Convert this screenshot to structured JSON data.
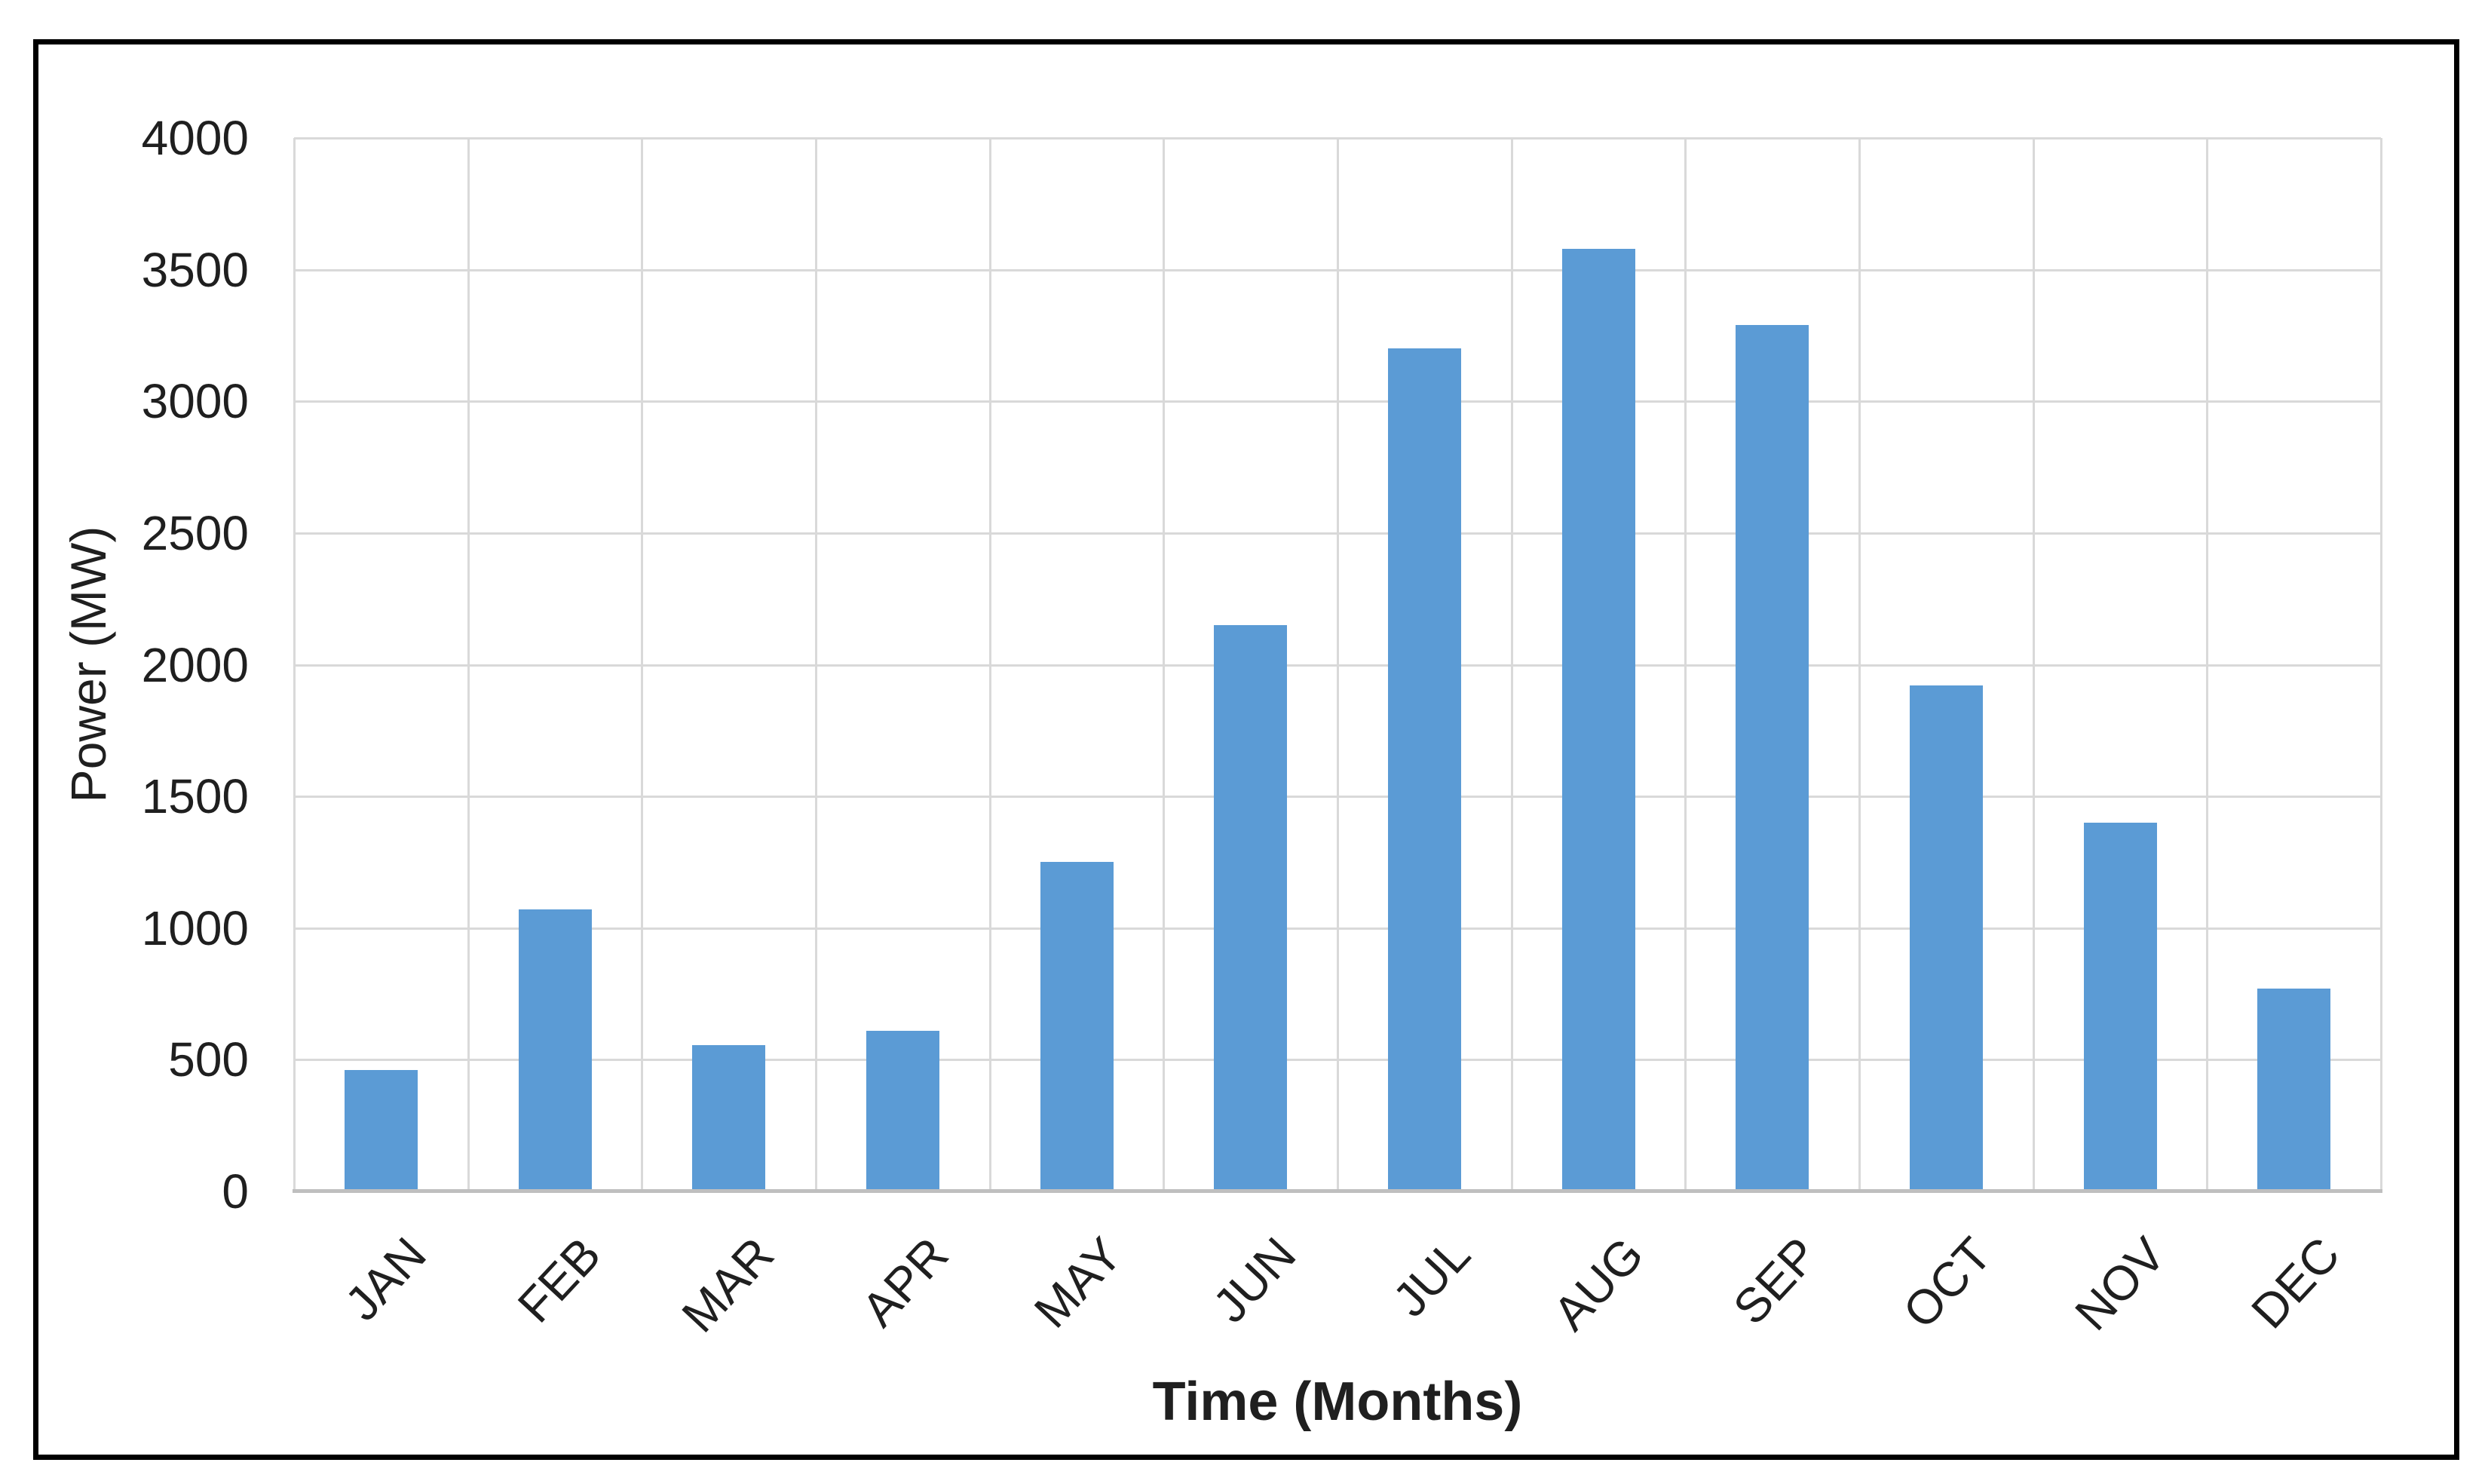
{
  "chart_data": {
    "type": "bar",
    "title": "",
    "categories": [
      "JAN",
      "FEB",
      "MAR",
      "APR",
      "MAY",
      "JUN",
      "JUL",
      "AUG",
      "SEP",
      "OCT",
      "NOV",
      "DEC"
    ],
    "values": [
      460,
      1070,
      555,
      610,
      1250,
      2150,
      3200,
      3580,
      3290,
      1920,
      1400,
      770
    ],
    "xlabel": "Time (Months)",
    "ylabel": "Power (MW)",
    "ylim": [
      0,
      4000
    ],
    "ytick_step": 500,
    "ytick_labels": [
      "4000",
      "3500",
      "3000",
      "2500",
      "2000",
      "1500",
      "1000",
      "500",
      "0"
    ],
    "grid": "on",
    "legend": "none"
  },
  "colors": {
    "bar": "#5B9BD5",
    "gridline": "#D9D9D9",
    "axis_line": "#BFBFBF",
    "text": "#1F1F1F",
    "frame": "#000000",
    "background": "#FFFFFF"
  }
}
